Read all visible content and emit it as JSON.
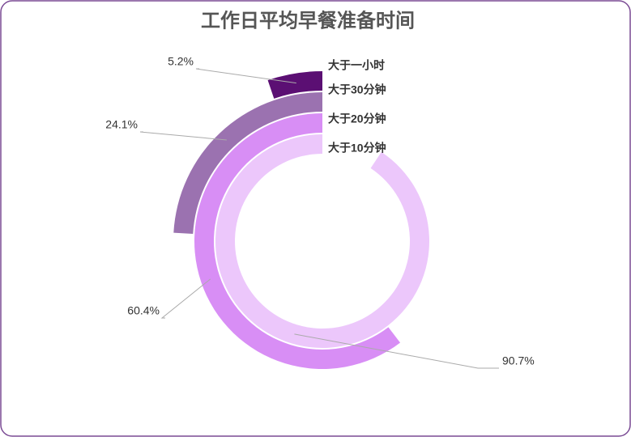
{
  "chart_data": {
    "type": "radialBar",
    "title": "工作日平均早餐准备时间",
    "categories": [
      "大于一小时",
      "大于30分钟",
      "大于20分钟",
      "大于10分钟"
    ],
    "values": [
      5.2,
      24.1,
      60.4,
      90.7
    ],
    "value_labels": [
      "5.2%",
      "24.1%",
      "60.4%",
      "90.7%"
    ],
    "colors": [
      "#5b0f73",
      "#9b72b0",
      "#d88ef5",
      "#ecc7fb"
    ]
  }
}
